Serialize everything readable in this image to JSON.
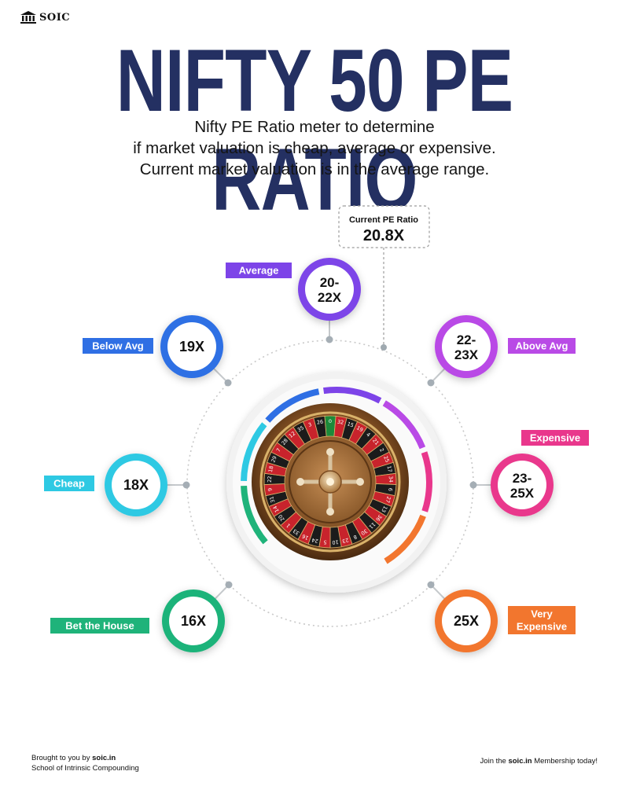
{
  "logo": {
    "text": "SOIC"
  },
  "title": "NIFTY 50 PE RATIO",
  "subtitle": [
    "Nifty PE Ratio meter to determine",
    "if market valuation is cheap, average or expensive.",
    "Current market valuation is in the average range."
  ],
  "current": {
    "label": "Current PE Ratio",
    "value": "20.8X"
  },
  "zones": [
    {
      "id": "bet-the-house",
      "value_lines": [
        "16X"
      ],
      "label_lines": [
        "Bet the House"
      ],
      "color": "#1fb37a"
    },
    {
      "id": "cheap",
      "value_lines": [
        "18X"
      ],
      "label_lines": [
        "Cheap"
      ],
      "color": "#2ec9e3"
    },
    {
      "id": "below-avg",
      "value_lines": [
        "19X"
      ],
      "label_lines": [
        "Below Avg"
      ],
      "color": "#2f6fe4"
    },
    {
      "id": "average",
      "value_lines": [
        "20-",
        "22X"
      ],
      "label_lines": [
        "Average"
      ],
      "color": "#7d44e8"
    },
    {
      "id": "above-avg",
      "value_lines": [
        "22-",
        "23X"
      ],
      "label_lines": [
        "Above Avg"
      ],
      "color": "#b94ae6"
    },
    {
      "id": "expensive",
      "value_lines": [
        "23-",
        "25X"
      ],
      "label_lines": [
        "Expensive"
      ],
      "color": "#e9378c"
    },
    {
      "id": "very-expensive",
      "value_lines": [
        "25X"
      ],
      "label_lines": [
        "Very",
        "Expensive"
      ],
      "color": "#f2762e"
    }
  ],
  "wheel": {
    "numbers": [
      "0",
      "32",
      "15",
      "19",
      "4",
      "21",
      "2",
      "25",
      "17",
      "34",
      "6",
      "27",
      "13",
      "36",
      "11",
      "30",
      "8",
      "23",
      "10",
      "5",
      "24",
      "16",
      "33",
      "1",
      "20",
      "14",
      "31",
      "9",
      "22",
      "18",
      "29",
      "7",
      "28",
      "12",
      "35",
      "3",
      "26"
    ]
  },
  "footer": {
    "left_prefix": "Brought to you by ",
    "left_site": "soic.in",
    "left_line2": "School of Intrinsic Compounding",
    "right_prefix": "Join the ",
    "right_site": "soic.in",
    "right_suffix": " Membership today!"
  }
}
